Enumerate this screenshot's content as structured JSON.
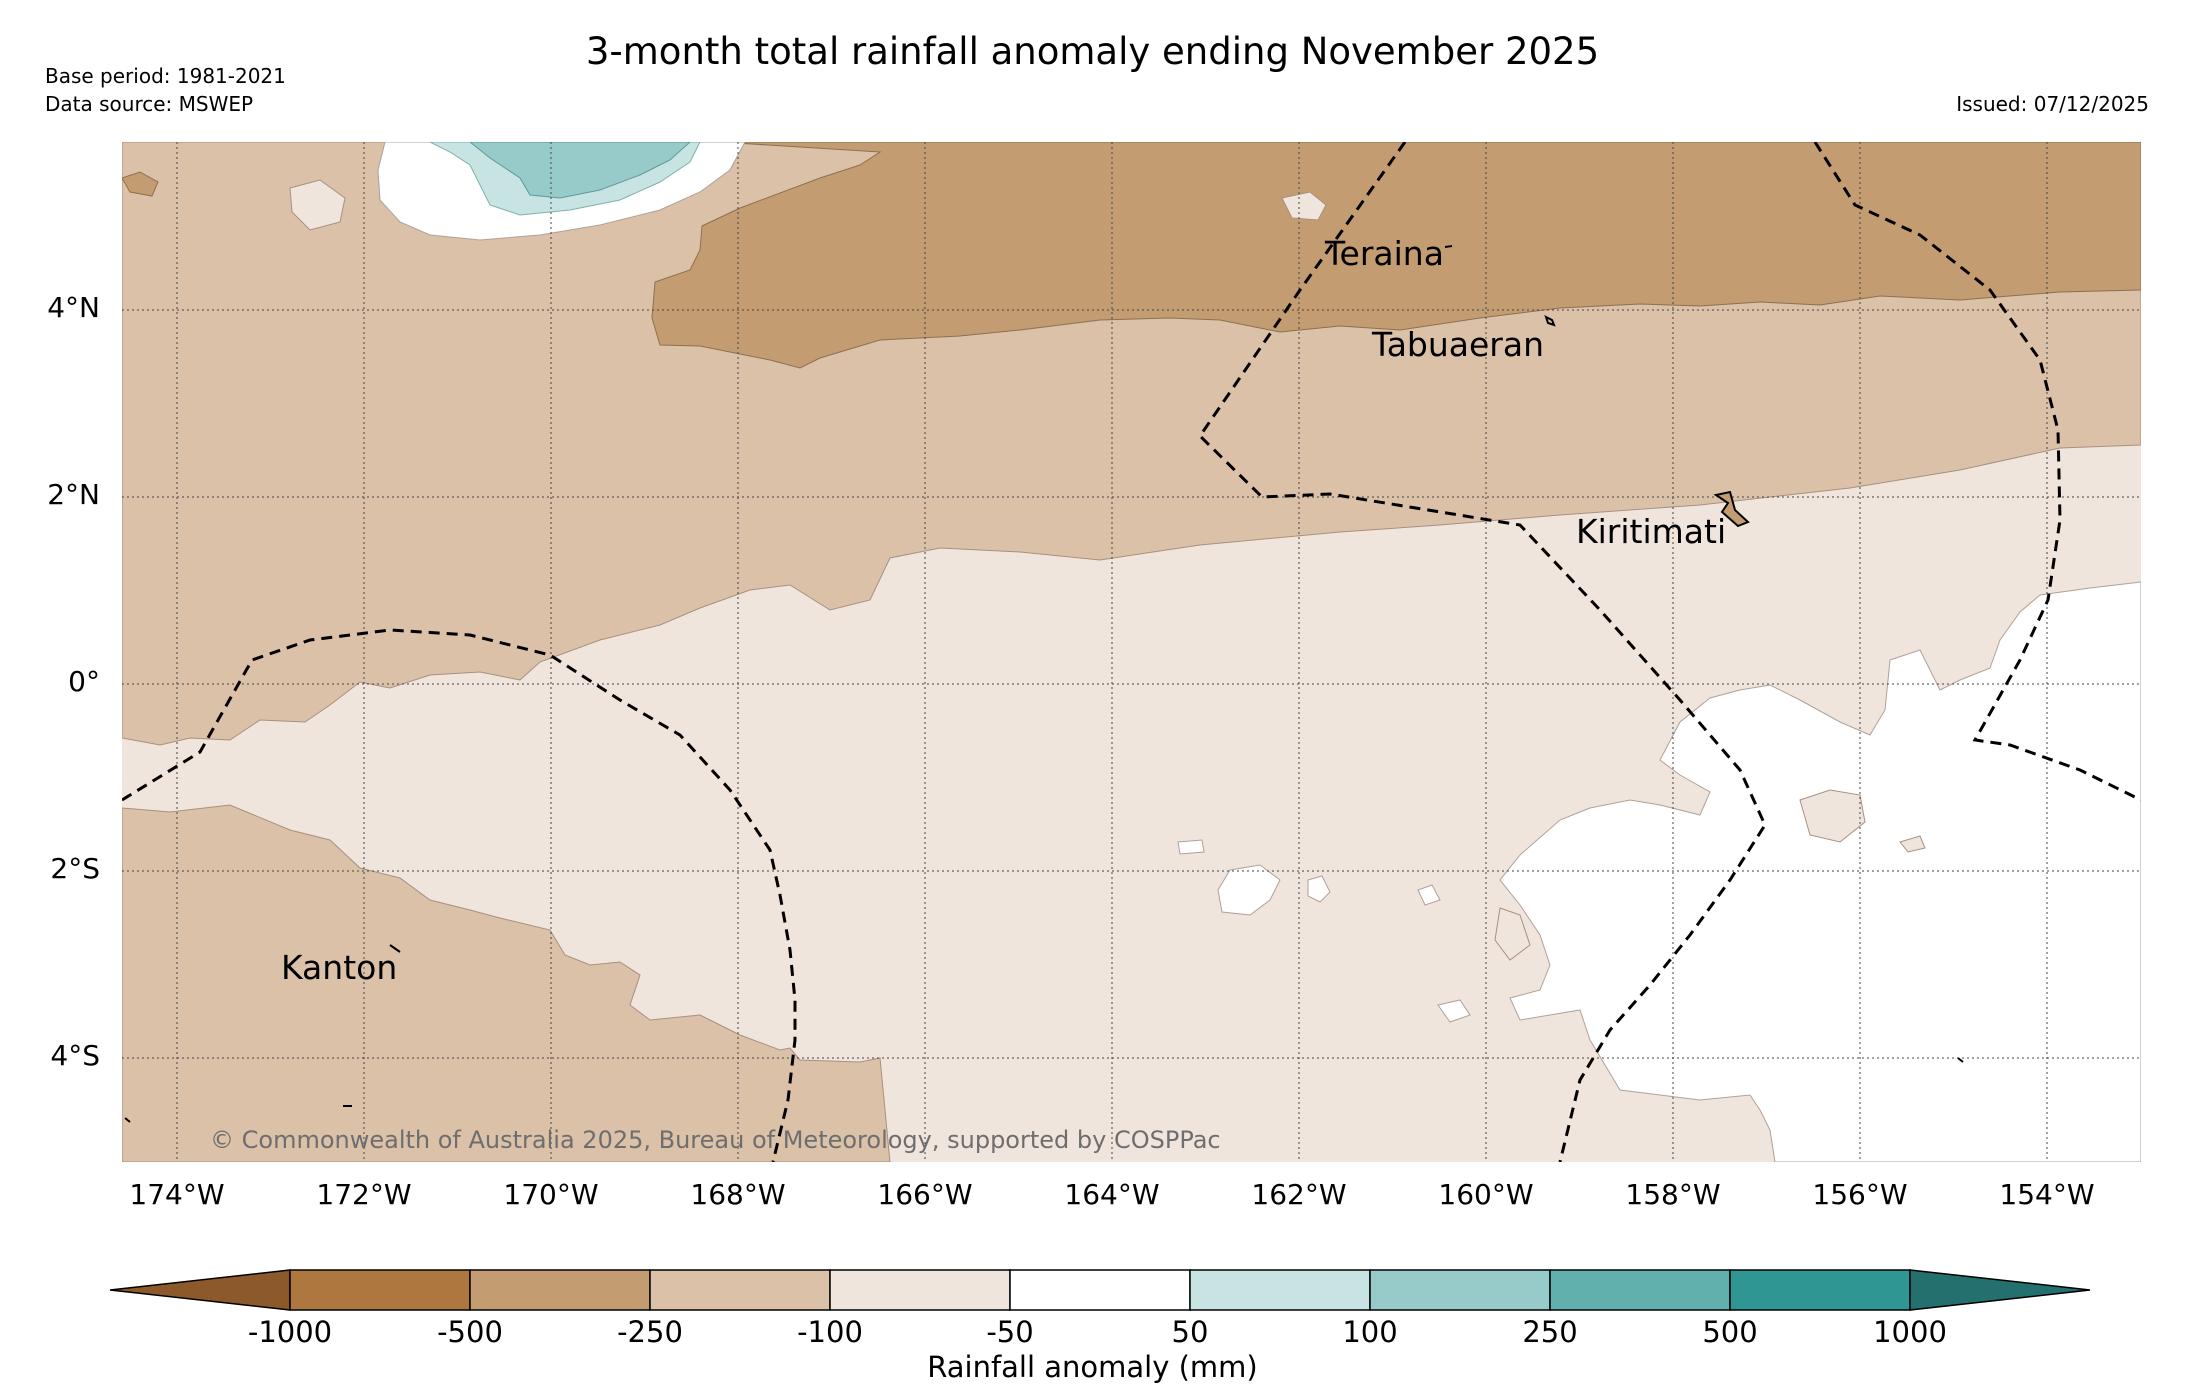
{
  "title": "3-month total rainfall anomaly ending November 2025",
  "base_period": "Base period: 1981-2021",
  "data_source": "Data source: MSWEP",
  "issued": "Issued: 07/12/2025",
  "copyright": "© Commonwealth of Australia 2025, Bureau of Meteorology, supported by COSPPac",
  "map": {
    "lat_labels": [
      "4°N",
      "2°N",
      "0°",
      "2°S",
      "4°S"
    ],
    "lon_labels": [
      "174°W",
      "172°W",
      "170°W",
      "168°W",
      "166°W",
      "164°W",
      "162°W",
      "160°W",
      "158°W",
      "156°W",
      "154°W"
    ],
    "places": [
      {
        "name": "Teraina"
      },
      {
        "name": "Tabuaeran"
      },
      {
        "name": "Kiritimati"
      },
      {
        "name": "Kanton"
      }
    ]
  },
  "legend": {
    "title": "Rainfall anomaly (mm)",
    "ticks": [
      "-1000",
      "-500",
      "-250",
      "-100",
      "-50",
      "50",
      "100",
      "250",
      "500",
      "1000"
    ],
    "colors": [
      "#8c5a2a",
      "#ad773f",
      "#c49c72",
      "#dbc1a8",
      "#f0e5dc",
      "#ffffff",
      "#c8e4e2",
      "#96cbca",
      "#62b0ae",
      "#2f9693",
      "#24706e"
    ]
  }
}
